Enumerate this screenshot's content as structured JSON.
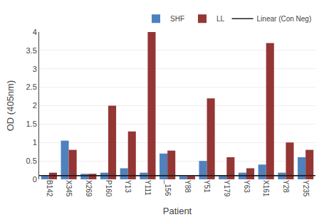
{
  "chart_data": {
    "type": "bar",
    "xlabel": "Patient",
    "ylabel": "OD (405nm)",
    "categories": [
      "B142",
      "X345",
      "X269",
      "P160",
      "Y13",
      "Y111",
      "_156",
      "Y88",
      "Y51",
      "Y179",
      "Y63",
      "X161",
      "Y28",
      "Y235"
    ],
    "series": [
      {
        "name": "SHF",
        "color": "#4F81BD",
        "values": [
          0.1,
          1.05,
          0.15,
          0.18,
          0.3,
          0.18,
          0.7,
          0.08,
          0.5,
          0.09,
          0.18,
          0.4,
          0.18,
          0.6
        ]
      },
      {
        "name": "LL",
        "color": "#943634",
        "values": [
          0.18,
          0.8,
          0.15,
          2.0,
          1.3,
          4.0,
          0.78,
          0.09,
          2.2,
          0.6,
          0.3,
          3.7,
          1.0,
          0.8
        ]
      }
    ],
    "reference_line": {
      "name": "Linear (Con Neg)",
      "value": 0.1,
      "color": "#1F1F1F"
    },
    "ylim": [
      0,
      4
    ],
    "yticks": [
      0,
      0.5,
      1,
      1.5,
      2,
      2.5,
      3,
      3.5,
      4
    ],
    "grid": true,
    "legend": "upper right"
  }
}
